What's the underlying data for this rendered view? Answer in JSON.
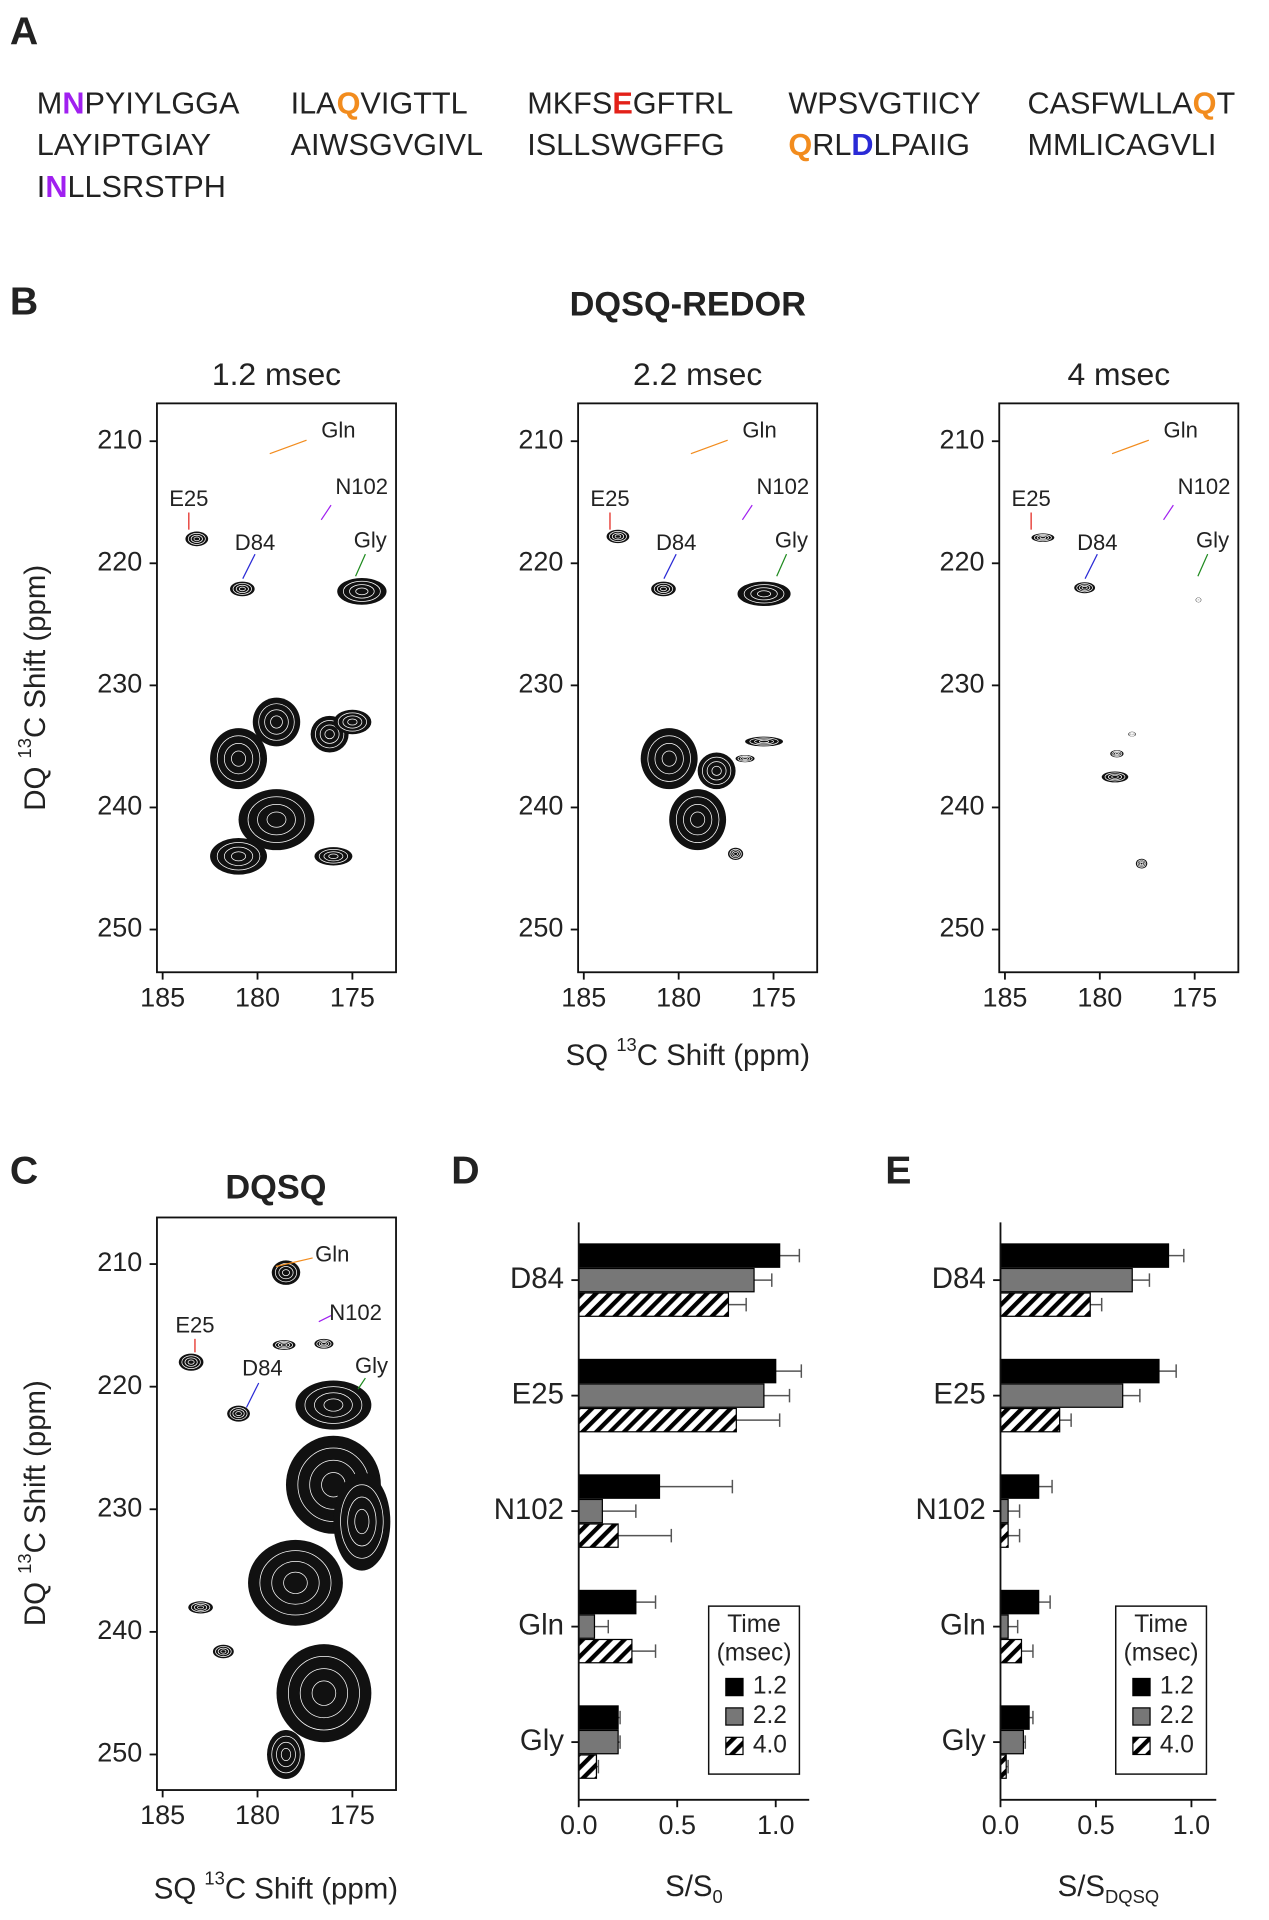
{
  "panel_labels": [
    "A",
    "B",
    "C",
    "D",
    "E"
  ],
  "sequence": [
    [
      [
        "M",
        {
          "text": "N",
          "color": "#a020f0"
        },
        "PYIYLGGA"
      ],
      [
        "ILA",
        {
          "text": "Q",
          "color": "#f28c1e"
        },
        "VIGTTL"
      ],
      [
        "MKFS",
        {
          "text": "E",
          "color": "#e32119"
        },
        "GFTRL"
      ],
      [
        "WPSVGTIICY"
      ],
      [
        "CASFWLLA",
        {
          "text": "Q",
          "color": "#f28c1e"
        },
        "T"
      ]
    ],
    [
      [
        "LAYIPTGIAY"
      ],
      [
        "AIWSGVGIVL"
      ],
      [
        "ISLLSWGFFG"
      ],
      [
        {
          "text": "Q",
          "color": "#f28c1e"
        },
        "RL",
        {
          "text": "D",
          "color": "#2a2ad6"
        },
        "LPAIIG"
      ],
      [
        "MMLICAGVLI"
      ]
    ],
    [
      [
        "I",
        {
          "text": "N",
          "color": "#a020f0"
        },
        "LLSRSTPH"
      ]
    ]
  ],
  "chart_data": [
    {
      "type": "contour",
      "title": "DQSQ-REDOR",
      "xlabel": {
        "pre": "SQ ",
        "sup": "13",
        "post": "C Shift (ppm)"
      },
      "ylabel": {
        "pre": "DQ ",
        "sup": "13",
        "post": "C Shift (ppm)"
      },
      "xlim": [
        185.3,
        172.7
      ],
      "ylim": [
        206.9,
        253.5
      ],
      "xticks": [
        185,
        180,
        175
      ],
      "yticks": [
        210,
        220,
        230,
        240,
        250
      ],
      "labels": [
        {
          "text": "Gln",
          "color": "#f28c1e"
        },
        {
          "text": "E25",
          "color": "#e32119"
        },
        {
          "text": "D84",
          "color": "#2a2ad6"
        },
        {
          "text": "N102",
          "color": "#a020f0"
        },
        {
          "text": "Gly",
          "color": "#1e8a1e"
        }
      ],
      "panels": [
        {
          "title": "1.2 msec",
          "peaks": [
            [
              183.2,
              218,
              1.2,
              1.2
            ],
            [
              180.8,
              222.1,
              1.3,
              1.2
            ],
            [
              174.5,
              222.3,
              2.6,
              2.2
            ],
            [
              181,
              236,
              3,
              5
            ],
            [
              179,
              233,
              2.5,
              4
            ],
            [
              179,
              241,
              4,
              5
            ],
            [
              181,
              244,
              3,
              3
            ],
            [
              176.2,
              234,
              2,
              3
            ],
            [
              175,
              233,
              2,
              2
            ],
            [
              176,
              244,
              2,
              1.5
            ]
          ]
        },
        {
          "title": "2.2 msec",
          "peaks": [
            [
              183.2,
              217.8,
              1.2,
              1.1
            ],
            [
              180.8,
              222.1,
              1.3,
              1.2
            ],
            [
              175.5,
              222.5,
              2.8,
              2
            ],
            [
              180.5,
              236,
              3,
              5
            ],
            [
              179,
              241,
              3,
              5
            ],
            [
              178,
              237,
              2,
              3
            ],
            [
              175.5,
              234.6,
              2,
              0.8
            ],
            [
              176.5,
              236,
              1,
              0.6
            ],
            [
              177,
              243.8,
              0.8,
              1
            ]
          ]
        },
        {
          "title": "4 msec",
          "peaks": [
            [
              183,
              217.9,
              1.2,
              0.7
            ],
            [
              180.8,
              222,
              1.1,
              0.9
            ],
            [
              174.8,
              223,
              0.3,
              0.4
            ],
            [
              179.1,
              235.6,
              0.7,
              0.6
            ],
            [
              179.2,
              237.5,
              1.4,
              0.9
            ],
            [
              178.3,
              234,
              0.4,
              0.4
            ],
            [
              177.8,
              244.6,
              0.6,
              0.8
            ]
          ]
        }
      ]
    },
    {
      "type": "contour",
      "title": "DQSQ",
      "xlabel": {
        "pre": "SQ ",
        "sup": "13",
        "post": "C Shift (ppm)"
      },
      "ylabel": {
        "pre": "DQ ",
        "sup": "13",
        "post": "C Shift (ppm)"
      },
      "xlim": [
        185.3,
        172.7
      ],
      "ylim": [
        206.2,
        252.9
      ],
      "xticks": [
        185,
        180,
        175
      ],
      "yticks": [
        210,
        220,
        230,
        240,
        250
      ],
      "labels": [
        {
          "text": "Gln",
          "color": "#f28c1e"
        },
        {
          "text": "E25",
          "color": "#e32119"
        },
        {
          "text": "D84",
          "color": "#2a2ad6"
        },
        {
          "text": "N102",
          "color": "#a020f0"
        },
        {
          "text": "Gly",
          "color": "#1e8a1e"
        }
      ],
      "panels": [
        {
          "peaks": [
            [
              183.5,
              218,
              1.3,
              1.4
            ],
            [
              181,
              222.2,
              1.2,
              1.3
            ],
            [
              178.5,
              210.7,
              1.5,
              2
            ],
            [
              176.5,
              216.5,
              1,
              0.8
            ],
            [
              178.6,
              216.6,
              1.2,
              0.8
            ],
            [
              176,
              221.5,
              4,
              4
            ],
            [
              176,
              228,
              5,
              8
            ],
            [
              178,
              236,
              5,
              7
            ],
            [
              176.5,
              245,
              5,
              8
            ],
            [
              178.5,
              250,
              2,
              4
            ],
            [
              183,
              238,
              1.3,
              1
            ],
            [
              181.8,
              241.6,
              1.1,
              1.1
            ],
            [
              174.5,
              231,
              3,
              8
            ]
          ]
        }
      ]
    },
    {
      "type": "bar",
      "categories": [
        "D84",
        "E25",
        "N102",
        "Gln",
        "Gly"
      ],
      "series": [
        {
          "name": "1.2",
          "color": "#000000",
          "values": [
            1.02,
            1.0,
            0.41,
            0.29,
            0.2
          ],
          "errors": [
            0.1,
            0.13,
            0.37,
            0.1,
            0.01
          ]
        },
        {
          "name": "2.2",
          "color": "#777777",
          "values": [
            0.89,
            0.94,
            0.12,
            0.08,
            0.2
          ],
          "errors": [
            0.09,
            0.13,
            0.17,
            0.07,
            0.01
          ]
        },
        {
          "name": "4.0",
          "color": "#ffffff",
          "hatch": true,
          "values": [
            0.76,
            0.8,
            0.2,
            0.27,
            0.09
          ],
          "errors": [
            0.09,
            0.22,
            0.27,
            0.12,
            0.01
          ]
        }
      ],
      "xlim": [
        0,
        1.17
      ],
      "xticks": [
        {
          "value": 0,
          "label": "0.0"
        },
        {
          "value": 0.5,
          "label": "0.5"
        },
        {
          "value": 1,
          "label": "1.0"
        }
      ],
      "xlabel": {
        "main": "S/S",
        "sub": "0"
      },
      "legend": {
        "title": [
          "Time",
          "(msec)"
        ],
        "position": "lower right"
      }
    },
    {
      "type": "bar",
      "categories": [
        "D84",
        "E25",
        "N102",
        "Gln",
        "Gly"
      ],
      "series": [
        {
          "name": "1.2",
          "color": "#000000",
          "values": [
            0.88,
            0.83,
            0.2,
            0.2,
            0.15
          ],
          "errors": [
            0.08,
            0.09,
            0.07,
            0.06,
            0.02
          ]
        },
        {
          "name": "2.2",
          "color": "#777777",
          "values": [
            0.69,
            0.64,
            0.04,
            0.04,
            0.12
          ],
          "errors": [
            0.09,
            0.09,
            0.06,
            0.05,
            0.01
          ]
        },
        {
          "name": "4.0",
          "color": "#ffffff",
          "hatch": true,
          "values": [
            0.47,
            0.31,
            0.04,
            0.11,
            0.03
          ],
          "errors": [
            0.06,
            0.06,
            0.06,
            0.06,
            0.01
          ]
        }
      ],
      "xlim": [
        0,
        1.13
      ],
      "xticks": [
        {
          "value": 0,
          "label": "0.0"
        },
        {
          "value": 0.5,
          "label": "0.5"
        },
        {
          "value": 1,
          "label": "1.0"
        }
      ],
      "xlabel": {
        "main": "S/S",
        "sub": "DQSQ"
      },
      "legend": {
        "title": [
          "Time",
          "(msec)"
        ],
        "position": "lower right"
      }
    }
  ]
}
